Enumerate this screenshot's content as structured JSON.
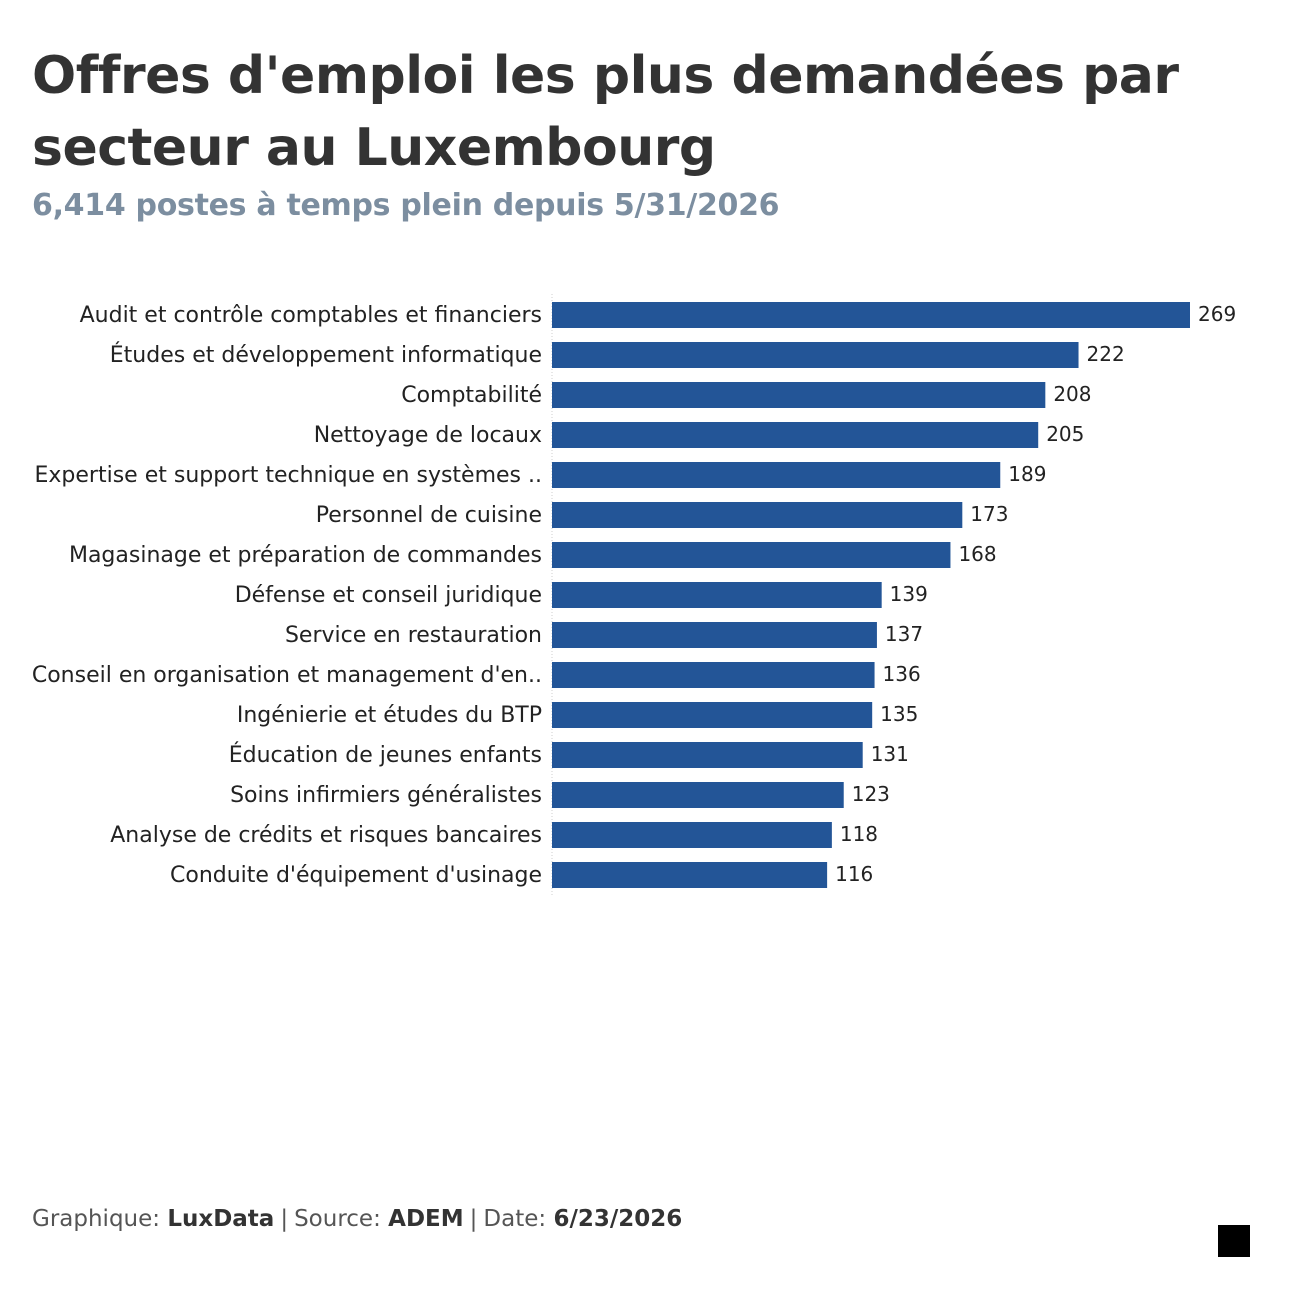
{
  "title": "Offres d'emploi les plus demandées par secteur au Luxembourg",
  "subtitle": "6,414 postes à temps plein depuis 5/31/2026",
  "footer": {
    "graphic_label": "Graphique: ",
    "graphic_value": "LuxData",
    "source_label": "Source: ",
    "source_value": "ADEM",
    "date_label": "Date: ",
    "date_value": "6/23/2026",
    "separator": "|"
  },
  "colors": {
    "bar": "#235597",
    "label": "#222222",
    "value": "#222222"
  },
  "chart_data": {
    "type": "bar",
    "orientation": "horizontal",
    "categories": [
      "Audit et contrôle comptables et financiers",
      "Études et développement informatique",
      "Comptabilité",
      "Nettoyage de locaux",
      "Expertise et support technique en systèmes ..",
      "Personnel de cuisine",
      "Magasinage et préparation de commandes",
      "Défense et conseil juridique",
      "Service en restauration",
      "Conseil en organisation et management d'en..",
      "Ingénierie et études du BTP",
      "Éducation de jeunes enfants",
      "Soins infirmiers généralistes",
      "Analyse de crédits et risques bancaires",
      "Conduite d'équipement d'usinage"
    ],
    "values": [
      269,
      222,
      208,
      205,
      189,
      173,
      168,
      139,
      137,
      136,
      135,
      131,
      123,
      118,
      116
    ],
    "xlim": [
      0,
      269
    ],
    "grid": false,
    "data_labels": true,
    "legend": "none"
  }
}
